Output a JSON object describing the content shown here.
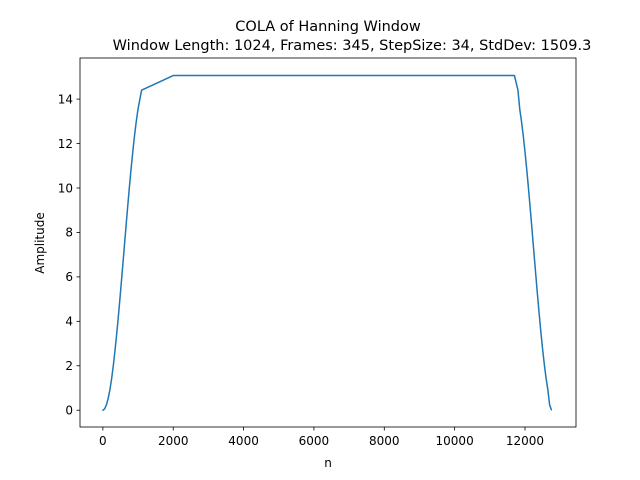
{
  "chart_data": {
    "type": "line",
    "title": "COLA of Hanning Window",
    "subtitle": "Window Length: 1024, Frames: 345, StepSize: 34, StdDev: 1509.3",
    "xlabel": "n",
    "ylabel": "Amplitude",
    "xlim": [
      -650,
      13450
    ],
    "ylim": [
      -0.755,
      15.85
    ],
    "xticks": [
      0,
      2000,
      4000,
      6000,
      8000,
      10000,
      12000
    ],
    "xtick_labels": [
      "0",
      "2000",
      "4000",
      "6000",
      "8000",
      "10000",
      "12000"
    ],
    "yticks": [
      0,
      2,
      4,
      6,
      8,
      10,
      12,
      14
    ],
    "ytick_labels": [
      "0",
      "2",
      "4",
      "6",
      "8",
      "10",
      "12",
      "14"
    ],
    "grid": false,
    "series": [
      {
        "color": "#1f77b4",
        "x": [
          0,
          50,
          100,
          150,
          200,
          250,
          300,
          350,
          400,
          450,
          500,
          550,
          600,
          650,
          700,
          750,
          800,
          850,
          900,
          950,
          1000,
          1100,
          2000,
          4000,
          6000,
          8000,
          10000,
          11700,
          11800,
          11850,
          11900,
          11950,
          12000,
          12050,
          12100,
          12150,
          12200,
          12250,
          12300,
          12350,
          12400,
          12450,
          12500,
          12550,
          12600,
          12650,
          12700,
          12750
        ],
        "y": [
          0,
          0.06,
          0.24,
          0.52,
          0.92,
          1.43,
          2.05,
          2.76,
          3.54,
          4.39,
          5.29,
          6.22,
          7.17,
          8.12,
          9.06,
          9.97,
          10.83,
          11.63,
          12.36,
          13.0,
          13.56,
          14.4,
          15.06,
          15.06,
          15.06,
          15.06,
          15.06,
          15.06,
          14.4,
          13.56,
          13.0,
          12.36,
          11.63,
          10.83,
          9.97,
          9.06,
          8.12,
          7.17,
          6.22,
          5.29,
          4.39,
          3.54,
          2.76,
          2.05,
          1.43,
          0.92,
          0.24,
          0.02
        ]
      }
    ]
  }
}
